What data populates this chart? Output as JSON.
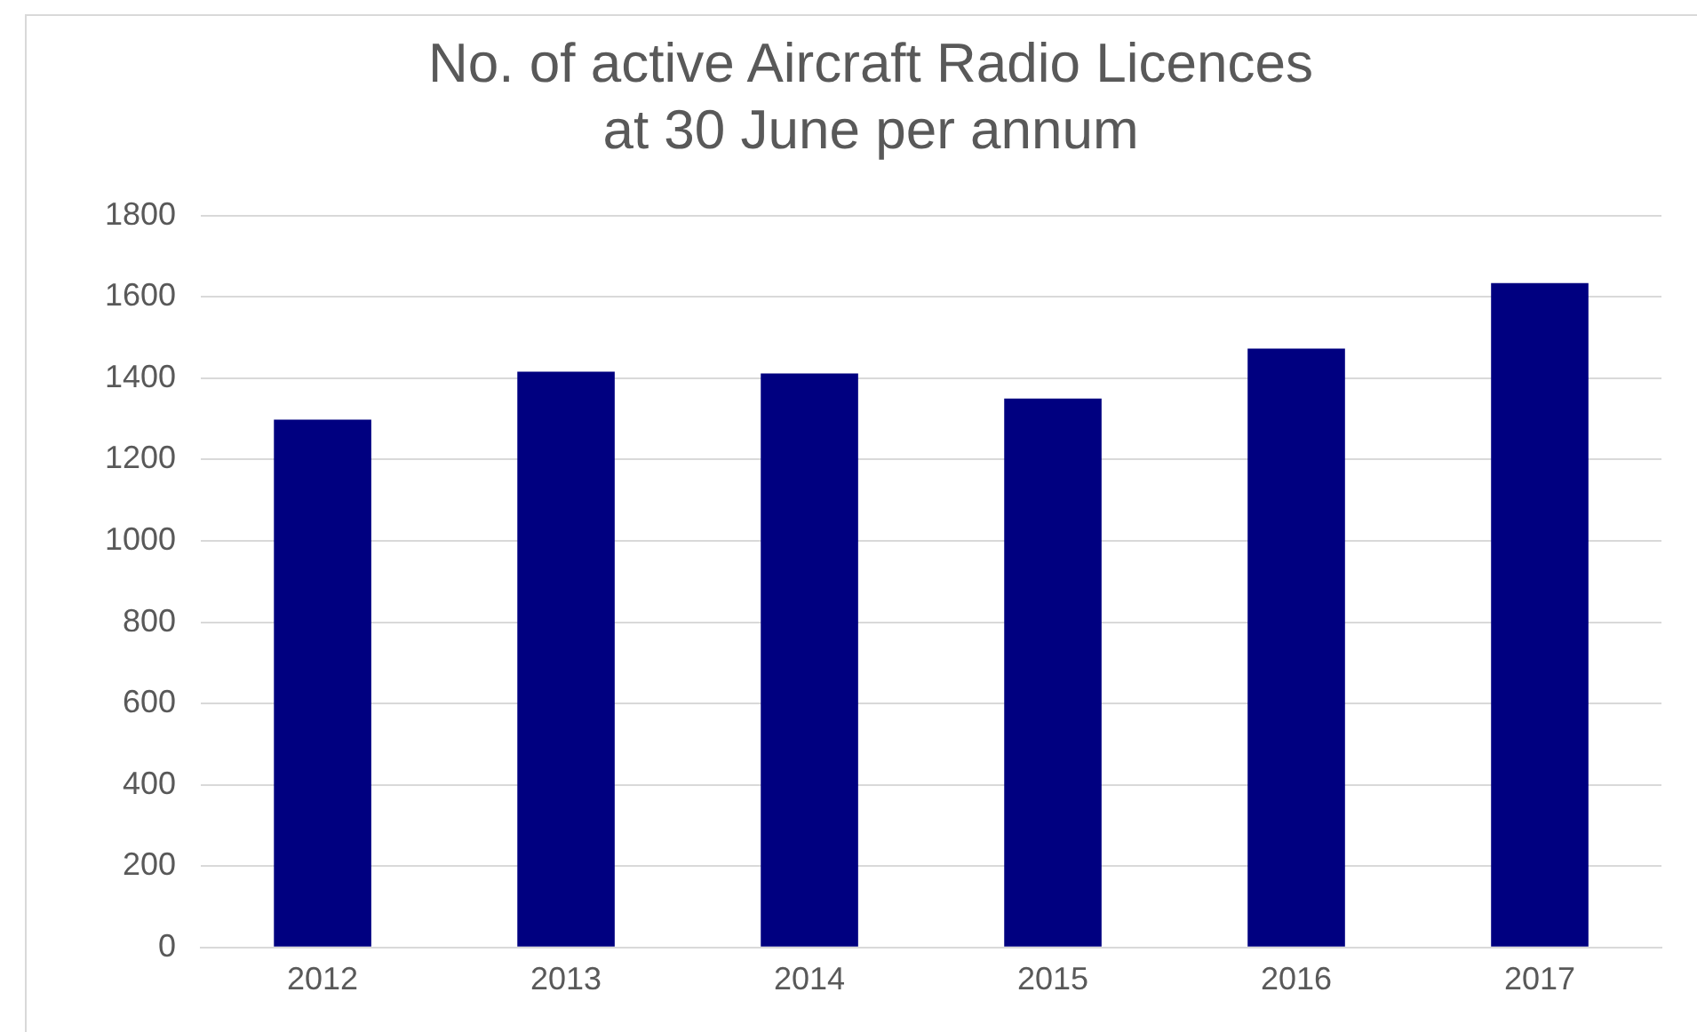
{
  "chart_data": {
    "type": "bar",
    "title": "No. of active Aircraft Radio Licences at 30 June per annum",
    "categories": [
      "2012",
      "2013",
      "2014",
      "2015",
      "2016",
      "2017"
    ],
    "values": [
      1298,
      1416,
      1412,
      1350,
      1473,
      1634
    ],
    "color": "#000080",
    "ylim": [
      0,
      1800
    ],
    "yticks": [
      0,
      200,
      400,
      600,
      800,
      1000,
      1200,
      1400,
      1600,
      1800
    ],
    "grid": "y"
  }
}
